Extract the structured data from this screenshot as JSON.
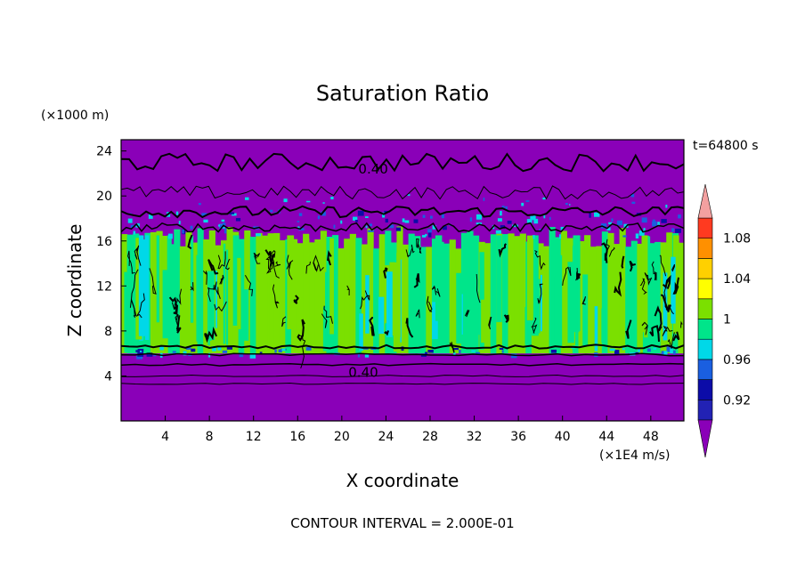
{
  "chart_data": {
    "type": "heatmap",
    "title": "Saturation Ratio",
    "xlabel": "X coordinate",
    "ylabel": "Z coordinate",
    "x_unit": "(×1E4 m/s)",
    "y_unit": "(×1000 m)",
    "time_label": "t=64800 s",
    "contour_interval_text": "CONTOUR INTERVAL = 2.000E-01",
    "xlim": [
      0,
      51
    ],
    "ylim": [
      0,
      25
    ],
    "x_ticks": [
      "4",
      "8",
      "12",
      "16",
      "20",
      "24",
      "28",
      "32",
      "36",
      "40",
      "44",
      "48"
    ],
    "y_ticks": [
      "4",
      "8",
      "12",
      "16",
      "20",
      "24"
    ],
    "contour_labels": [
      "0.40",
      "0.40"
    ],
    "colorbar": {
      "labels": [
        "0.92",
        "0.96",
        "1",
        "1.04",
        "1.08"
      ],
      "levels": [
        0.9,
        0.92,
        0.94,
        0.96,
        0.98,
        1.0,
        1.02,
        1.04,
        1.06,
        1.08,
        1.1
      ],
      "colors": [
        "#8a00b8",
        "#2222b4",
        "#0c0ca8",
        "#1a5fe0",
        "#00d8e8",
        "#00e58a",
        "#7be000",
        "#ffff00",
        "#ffd000",
        "#ff9000",
        "#ff3a20",
        "#ee1010",
        "#f3a0a0"
      ]
    },
    "bands": [
      {
        "name": "upper dry layer",
        "z": [
          18,
          25
        ],
        "value": 0.9,
        "color": "#8a00b8"
      },
      {
        "name": "cloud layer",
        "z": [
          6,
          16.5
        ],
        "value": 1.0,
        "color": "#7be000"
      },
      {
        "name": "lower dry layer",
        "z": [
          0,
          6
        ],
        "value": 0.9,
        "color": "#8a00b8"
      }
    ]
  }
}
